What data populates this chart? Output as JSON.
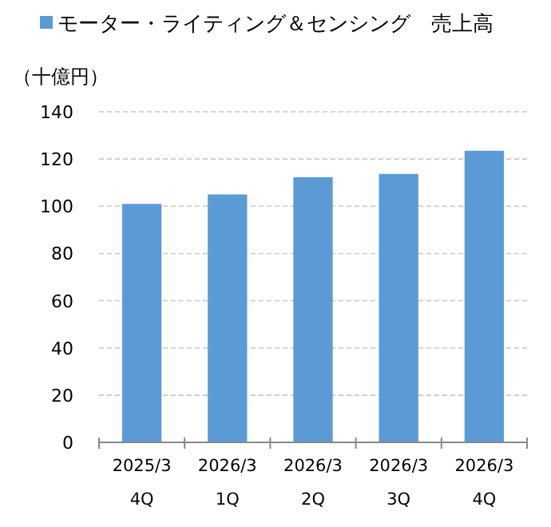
{
  "chart_data": {
    "type": "bar",
    "title": "モーター・ライティング＆センシング　売上高",
    "ylabel": "（十億円）",
    "categories": [
      "2025/3\n4Q",
      "2026/3\n1Q",
      "2026/3\n2Q",
      "2026/3\n3Q",
      "2026/3\n4Q"
    ],
    "values": [
      101,
      105,
      112.3,
      113.7,
      123.5
    ],
    "color": "#5b9bd5",
    "ylim": [
      0,
      140
    ],
    "yticks": [
      0,
      20,
      40,
      60,
      80,
      100,
      120,
      140
    ],
    "grid": "y"
  }
}
